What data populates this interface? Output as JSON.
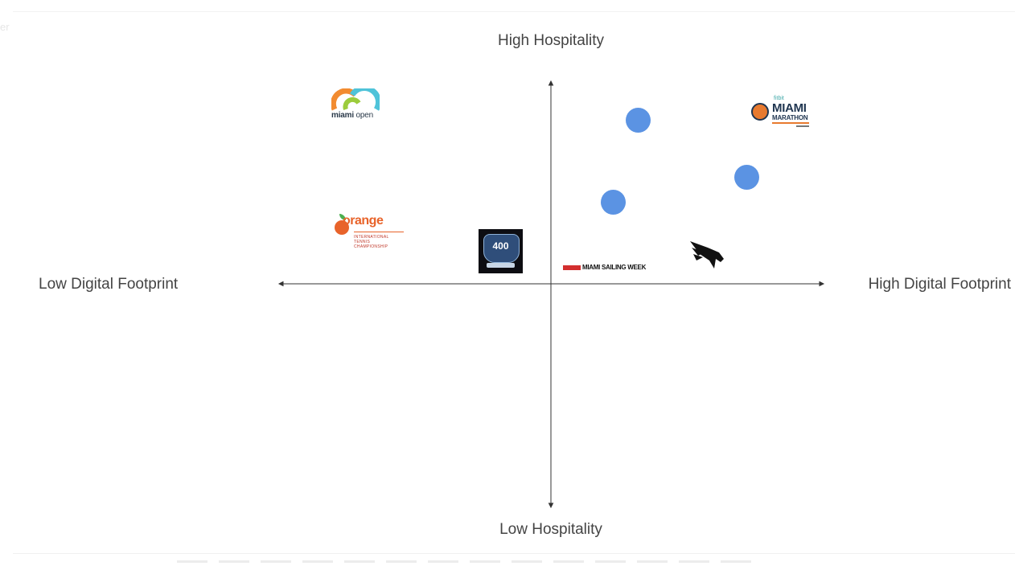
{
  "axes": {
    "top_label": "High Hospitality",
    "bottom_label": "Low Hospitality",
    "left_label": "Low Digital Footprint",
    "right_label": "High Digital Footprint"
  },
  "logos": {
    "miami_open": {
      "wordmark_bold": "miami",
      "wordmark_thin": " open"
    },
    "junior_orange_bowl": {
      "word": "orange",
      "sub_line_1": "INTERNATIONAL",
      "sub_line_2": "TENNIS CHAMPIONSHIP"
    },
    "race_badge": {
      "number": "400"
    },
    "miami_sailing_week": {
      "text": "MIAMI SAILING WEEK"
    },
    "miami_marathon": {
      "sponsor": "fitbit",
      "line_1": "MIAMI",
      "line_2": "MARATHON"
    }
  },
  "colors": {
    "dot": "#5b93e3",
    "axis": "#333333",
    "label": "#444444"
  }
}
